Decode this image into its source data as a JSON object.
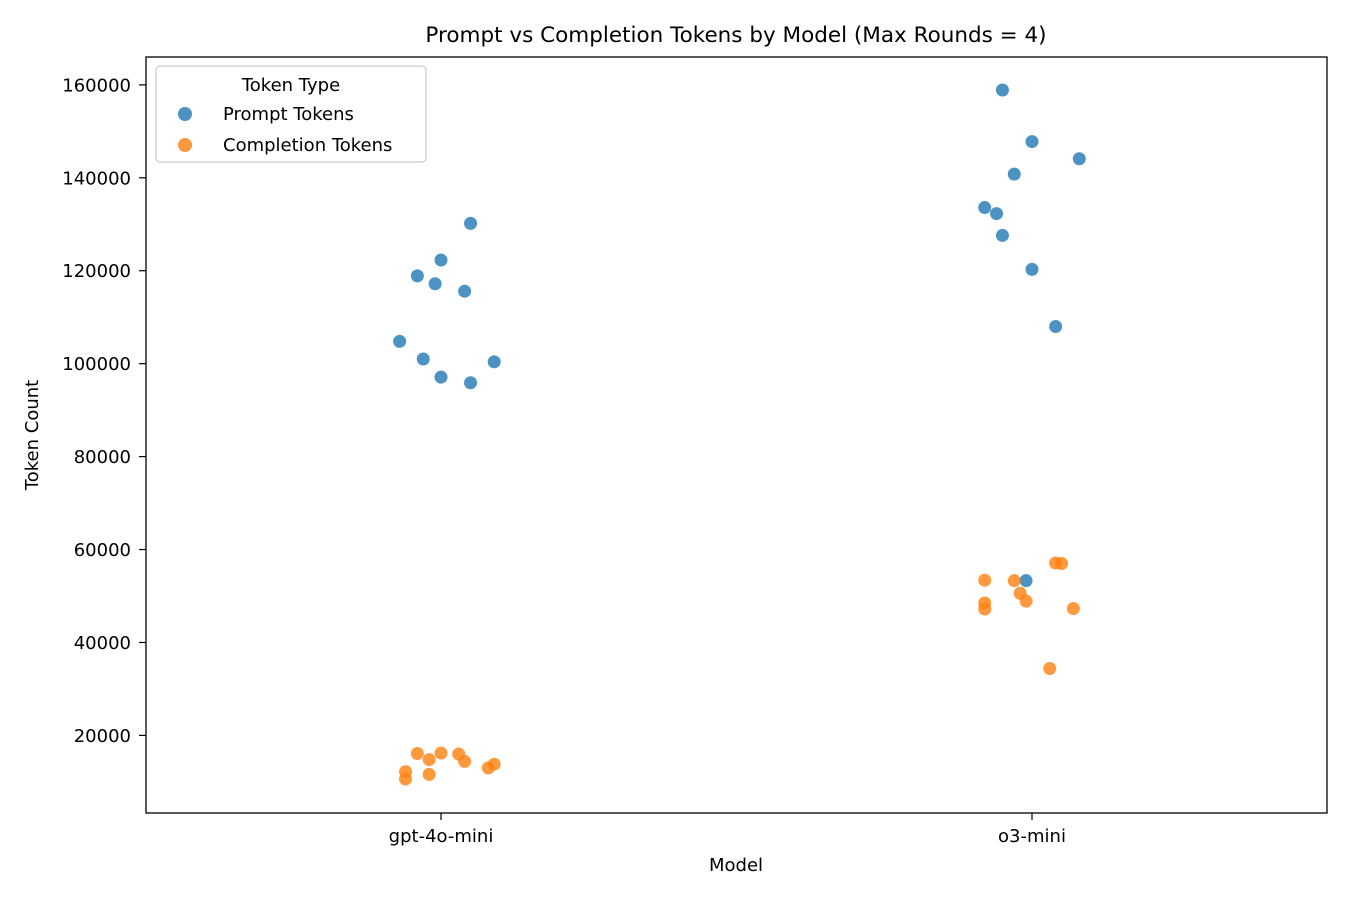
{
  "chart_data": {
    "type": "scatter",
    "title": "Prompt vs Completion Tokens by Model (Max Rounds = 4)",
    "xlabel": "Model",
    "ylabel": "Token Count",
    "categories": [
      "gpt-4o-mini",
      "o3-mini"
    ],
    "y_ticks": [
      20000,
      40000,
      60000,
      80000,
      100000,
      120000,
      140000,
      160000
    ],
    "ylim": [
      3300,
      166000
    ],
    "grid": false,
    "legend": {
      "title": "Token Type",
      "placement": "top-left"
    },
    "colors": {
      "prompt": "#1f77b4",
      "completion": "#ff7f0e"
    },
    "series": [
      {
        "name": "Prompt Tokens",
        "points": [
          {
            "category": "gpt-4o-mini",
            "jitter": 0.05,
            "y": 130200
          },
          {
            "category": "gpt-4o-mini",
            "jitter": 0.0,
            "y": 122300
          },
          {
            "category": "gpt-4o-mini",
            "jitter": -0.04,
            "y": 118900
          },
          {
            "category": "gpt-4o-mini",
            "jitter": -0.01,
            "y": 117200
          },
          {
            "category": "gpt-4o-mini",
            "jitter": 0.04,
            "y": 115600
          },
          {
            "category": "gpt-4o-mini",
            "jitter": -0.07,
            "y": 104800
          },
          {
            "category": "gpt-4o-mini",
            "jitter": -0.03,
            "y": 101000
          },
          {
            "category": "gpt-4o-mini",
            "jitter": 0.09,
            "y": 100400
          },
          {
            "category": "gpt-4o-mini",
            "jitter": 0.0,
            "y": 97100
          },
          {
            "category": "gpt-4o-mini",
            "jitter": 0.05,
            "y": 95900
          },
          {
            "category": "o3-mini",
            "jitter": -0.05,
            "y": 158900
          },
          {
            "category": "o3-mini",
            "jitter": 0.0,
            "y": 147800
          },
          {
            "category": "o3-mini",
            "jitter": 0.08,
            "y": 144100
          },
          {
            "category": "o3-mini",
            "jitter": -0.03,
            "y": 140800
          },
          {
            "category": "o3-mini",
            "jitter": -0.08,
            "y": 133600
          },
          {
            "category": "o3-mini",
            "jitter": -0.06,
            "y": 132300
          },
          {
            "category": "o3-mini",
            "jitter": -0.05,
            "y": 127600
          },
          {
            "category": "o3-mini",
            "jitter": 0.0,
            "y": 120300
          },
          {
            "category": "o3-mini",
            "jitter": 0.04,
            "y": 108000
          },
          {
            "category": "o3-mini",
            "jitter": -0.01,
            "y": 53300
          }
        ]
      },
      {
        "name": "Completion Tokens",
        "points": [
          {
            "category": "gpt-4o-mini",
            "jitter": -0.04,
            "y": 16100
          },
          {
            "category": "gpt-4o-mini",
            "jitter": 0.0,
            "y": 16200
          },
          {
            "category": "gpt-4o-mini",
            "jitter": 0.03,
            "y": 16000
          },
          {
            "category": "gpt-4o-mini",
            "jitter": -0.02,
            "y": 14800
          },
          {
            "category": "gpt-4o-mini",
            "jitter": 0.04,
            "y": 14400
          },
          {
            "category": "gpt-4o-mini",
            "jitter": 0.09,
            "y": 13800
          },
          {
            "category": "gpt-4o-mini",
            "jitter": 0.08,
            "y": 13000
          },
          {
            "category": "gpt-4o-mini",
            "jitter": -0.06,
            "y": 12200
          },
          {
            "category": "gpt-4o-mini",
            "jitter": -0.02,
            "y": 11600
          },
          {
            "category": "gpt-4o-mini",
            "jitter": -0.06,
            "y": 10600
          },
          {
            "category": "o3-mini",
            "jitter": 0.04,
            "y": 57100
          },
          {
            "category": "o3-mini",
            "jitter": 0.05,
            "y": 57000
          },
          {
            "category": "o3-mini",
            "jitter": -0.08,
            "y": 53400
          },
          {
            "category": "o3-mini",
            "jitter": -0.03,
            "y": 53300
          },
          {
            "category": "o3-mini",
            "jitter": -0.02,
            "y": 50600
          },
          {
            "category": "o3-mini",
            "jitter": -0.01,
            "y": 48900
          },
          {
            "category": "o3-mini",
            "jitter": -0.08,
            "y": 48500
          },
          {
            "category": "o3-mini",
            "jitter": -0.08,
            "y": 47200
          },
          {
            "category": "o3-mini",
            "jitter": 0.07,
            "y": 47300
          },
          {
            "category": "o3-mini",
            "jitter": 0.03,
            "y": 34400
          }
        ]
      }
    ]
  }
}
